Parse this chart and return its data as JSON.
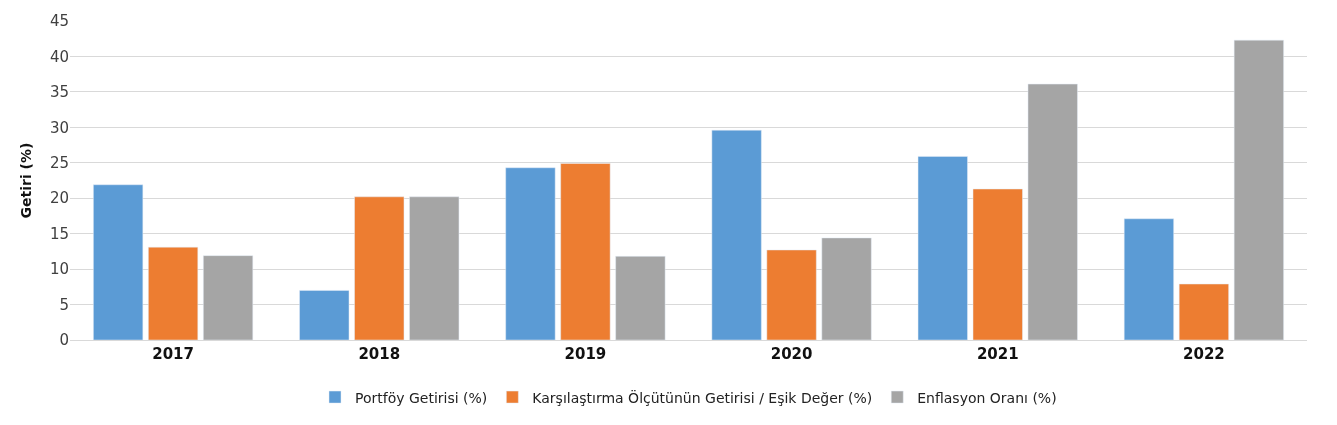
{
  "chart_data": {
    "type": "bar",
    "ylabel": "Getiri (%)",
    "categories": [
      "2017",
      "2018",
      "2019",
      "2020",
      "2021",
      "2022"
    ],
    "series": [
      {
        "name": "Portföy Getirisi (%)",
        "color": "#5b9bd5",
        "values": [
          21.9,
          7.0,
          24.3,
          29.6,
          25.9,
          17.1
        ]
      },
      {
        "name": "Karşılaştırma Ölçütünün Getirisi / Eşik Değer (%)",
        "color": "#ed7d31",
        "values": [
          13.1,
          20.2,
          24.9,
          12.7,
          21.3,
          7.9
        ]
      },
      {
        "name": "Enflasyon Oranı (%)",
        "color": "#a5a5a5",
        "values": [
          11.9,
          20.2,
          11.8,
          14.4,
          36.1,
          42.3
        ]
      }
    ],
    "ylim": [
      0,
      45
    ],
    "yticks": [
      0,
      5,
      10,
      15,
      20,
      25,
      30,
      35,
      40,
      45
    ],
    "grid": "y",
    "legend": "bottom"
  }
}
